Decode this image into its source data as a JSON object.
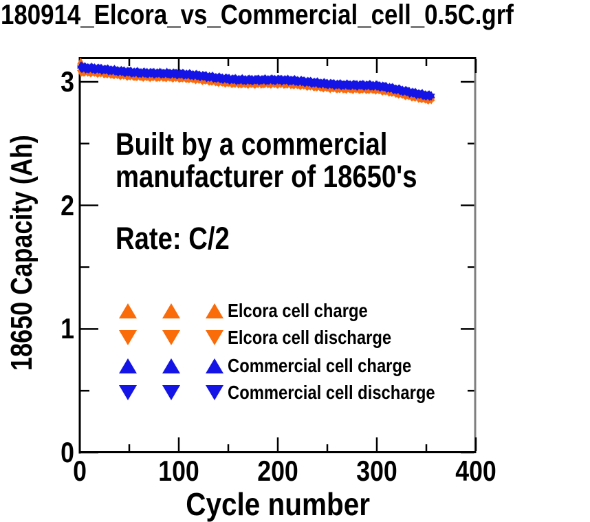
{
  "title": "180914_Elcora_vs_Commercial_cell_0.5C.grf",
  "annotations": {
    "line1": "Built by a commercial",
    "line2": "manufacturer of 18650's",
    "rate": "Rate: C/2"
  },
  "colors": {
    "elcora_orange": "#FA6B0A",
    "commercial_blue": "#1414E6",
    "axis_black": "#000000",
    "right_axis_gray": "#7F7F7F",
    "background": "#FFFFFF",
    "text": "#000000"
  },
  "chart_data": {
    "type": "scatter",
    "title": "180914_Elcora_vs_Commercial_cell_0.5C.grf",
    "xlabel": "Cycle number",
    "ylabel": "18650 Capacity (Ah)",
    "xlim": [
      0,
      400
    ],
    "ylim": [
      0,
      3.2
    ],
    "x_major_ticks": [
      0,
      100,
      200,
      300,
      400
    ],
    "x_minor_ticks": [
      50,
      150,
      250,
      350
    ],
    "y_major_ticks": [
      3,
      2,
      1,
      0
    ],
    "y_minor_ticks": [
      0.5,
      1.5,
      2.5
    ],
    "grid": false,
    "legend_position": "inside-lower-left",
    "cycle_range": [
      1,
      355
    ],
    "series": [
      {
        "name": "Elcora cell charge",
        "color": "#FA6B0A",
        "marker": "triangle-up",
        "cycles": [
          1,
          4,
          25,
          50,
          75,
          100,
          125,
          150,
          175,
          200,
          225,
          250,
          275,
          300,
          320,
          340,
          355
        ],
        "values": [
          3.15,
          3.088,
          3.074,
          3.064,
          3.052,
          3.039,
          3.029,
          3.019,
          3.007,
          2.994,
          2.982,
          2.969,
          2.954,
          2.939,
          2.914,
          2.892,
          2.879
        ]
      },
      {
        "name": "Elcora cell discharge",
        "color": "#FA6B0A",
        "marker": "triangle-down",
        "cycles": [
          1,
          25,
          50,
          75,
          100,
          125,
          150,
          175,
          200,
          225,
          250,
          275,
          300,
          320,
          340,
          355
        ],
        "values": [
          3.062,
          3.052,
          3.042,
          3.03,
          3.017,
          3.007,
          2.997,
          2.985,
          2.972,
          2.96,
          2.947,
          2.932,
          2.917,
          2.892,
          2.87,
          2.857
        ]
      },
      {
        "name": "Commercial cell charge",
        "color": "#1414E6",
        "marker": "triangle-up",
        "cycles": [
          1,
          4,
          25,
          50,
          75,
          100,
          125,
          150,
          175,
          200,
          225,
          250,
          275,
          300,
          320,
          340,
          355
        ],
        "values": [
          3.13,
          3.114,
          3.102,
          3.092,
          3.08,
          3.067,
          3.057,
          3.047,
          3.035,
          3.022,
          3.01,
          2.997,
          2.982,
          2.967,
          2.942,
          2.92,
          2.907
        ]
      },
      {
        "name": "Commercial cell discharge",
        "color": "#1414E6",
        "marker": "triangle-down",
        "cycles": [
          1,
          25,
          50,
          75,
          100,
          125,
          150,
          175,
          200,
          225,
          250,
          275,
          300,
          320,
          340,
          355
        ],
        "values": [
          3.09,
          3.08,
          3.07,
          3.058,
          3.045,
          3.035,
          3.025,
          3.013,
          3.0,
          2.988,
          2.975,
          2.96,
          2.945,
          2.92,
          2.898,
          2.885
        ]
      }
    ]
  }
}
